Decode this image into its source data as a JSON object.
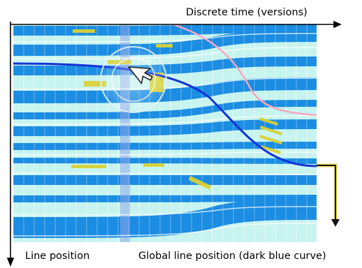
{
  "labels": {
    "x_axis": "Discrete time (versions)",
    "y_axis": "Line position",
    "global": "Global line position (dark blue curve)"
  },
  "icons": {
    "cursor": "mouse-pointer-icon",
    "lens": "magnifier-lens-icon"
  },
  "colors": {
    "background": "#ffffff",
    "band_blue": "#1b8de2",
    "band_light": "#c8f4ef",
    "global_curve": "#1233d8",
    "highlight_yellow": "#d8d238",
    "pink_line": "#f4a9c0",
    "global_marker": "#e8d43a",
    "axis": "#000000"
  },
  "versions": {
    "count": 29,
    "highlighted_index": 10
  }
}
